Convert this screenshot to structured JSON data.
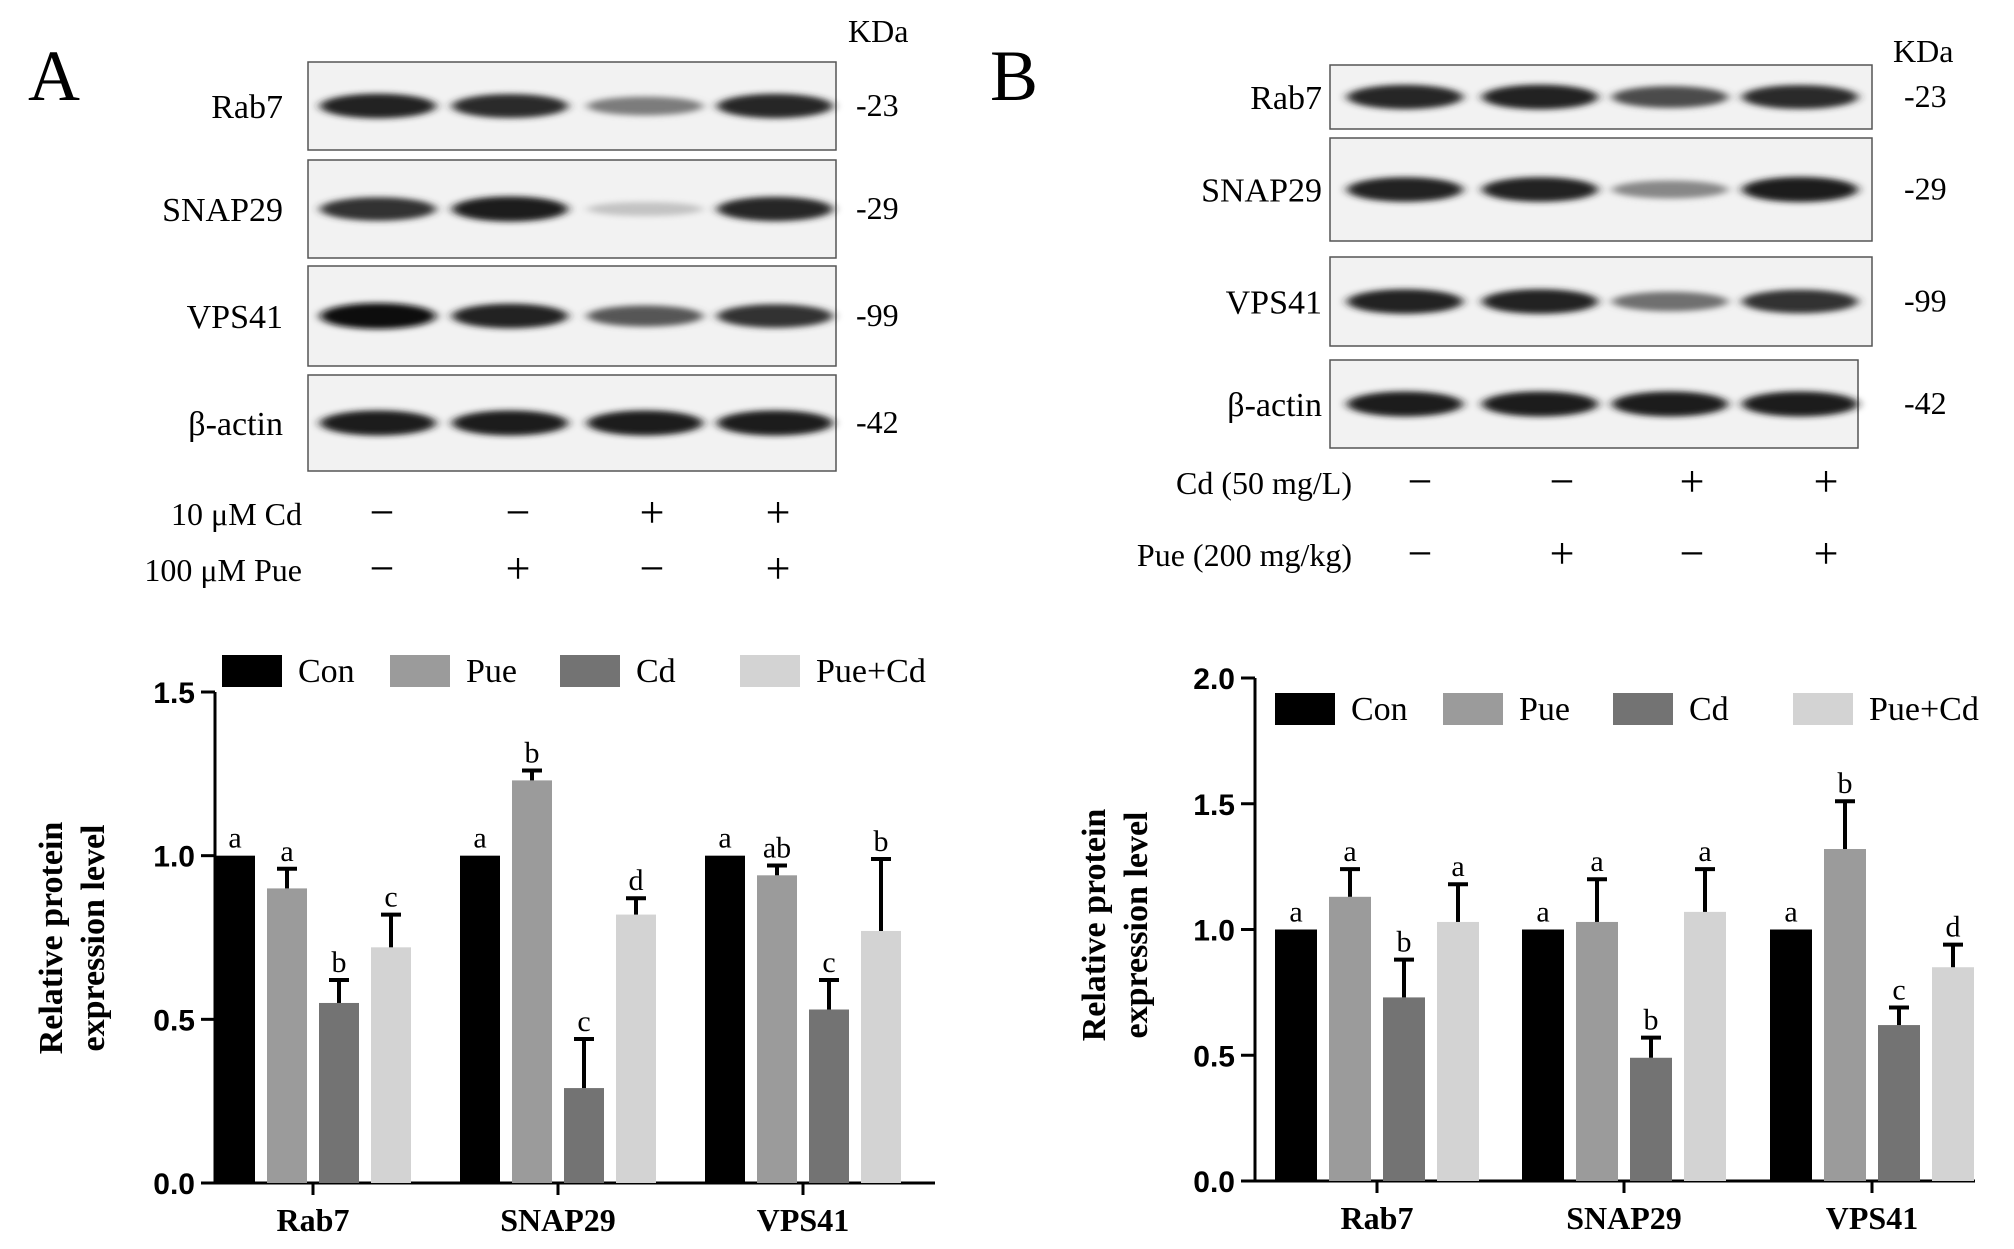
{
  "panels": [
    {
      "letter": "A",
      "kda_label": "KDa",
      "blots": [
        {
          "protein": "Rab7",
          "mw": "-23",
          "intensity": [
            0.92,
            0.88,
            0.55,
            0.9
          ]
        },
        {
          "protein": "SNAP29",
          "mw": "-29",
          "intensity": [
            0.85,
            0.95,
            0.25,
            0.9
          ]
        },
        {
          "protein": "VPS41",
          "mw": "-99",
          "intensity": [
            1.0,
            0.92,
            0.7,
            0.85
          ]
        },
        {
          "protein": "β-actin",
          "mw": "-42",
          "intensity": [
            0.95,
            0.95,
            0.95,
            0.95
          ]
        }
      ],
      "treatments": [
        {
          "label": "10 μM Cd",
          "signs": [
            "−",
            "−",
            "+",
            "+"
          ]
        },
        {
          "label": "100 μM Pue",
          "signs": [
            "−",
            "+",
            "−",
            "+"
          ]
        }
      ]
    },
    {
      "letter": "B",
      "kda_label": "KDa",
      "blots": [
        {
          "protein": "Rab7",
          "mw": "-23",
          "intensity": [
            0.9,
            0.92,
            0.75,
            0.88
          ]
        },
        {
          "protein": "SNAP29",
          "mw": "-29",
          "intensity": [
            0.92,
            0.92,
            0.5,
            0.95
          ]
        },
        {
          "protein": "VPS41",
          "mw": "-99",
          "intensity": [
            0.92,
            0.92,
            0.6,
            0.85
          ]
        },
        {
          "protein": "β-actin",
          "mw": "-42",
          "intensity": [
            0.95,
            0.95,
            0.95,
            0.95
          ]
        }
      ],
      "treatments": [
        {
          "label": "Cd (50 mg/L)",
          "signs": [
            "−",
            "−",
            "+",
            "+"
          ]
        },
        {
          "label": "Pue (200 mg/kg)",
          "signs": [
            "−",
            "+",
            "−",
            "+"
          ]
        }
      ]
    }
  ],
  "chart_data": [
    {
      "type": "bar",
      "panel": "A",
      "categories": [
        "Rab7",
        "SNAP29",
        "VPS41"
      ],
      "ylabel": "Relative protein expression level",
      "ylim": [
        0,
        1.5
      ],
      "yticks": [
        "0.0",
        "0.5",
        "1.0",
        "1.5"
      ],
      "legend": "top",
      "series": [
        {
          "name": "Con",
          "color": "#000000",
          "values": [
            1.0,
            1.0,
            1.0
          ],
          "errors": [
            0,
            0,
            0
          ],
          "letters": [
            "a",
            "a",
            "a"
          ]
        },
        {
          "name": "Pue",
          "color": "#9b9b9b",
          "values": [
            0.9,
            1.23,
            0.94
          ],
          "errors": [
            0.06,
            0.03,
            0.03
          ],
          "letters": [
            "a",
            "b",
            "ab"
          ]
        },
        {
          "name": "Cd",
          "color": "#737373",
          "values": [
            0.55,
            0.29,
            0.53
          ],
          "errors": [
            0.07,
            0.15,
            0.09
          ],
          "letters": [
            "b",
            "c",
            "c"
          ]
        },
        {
          "name": "Pue+Cd",
          "color": "#d3d3d3",
          "values": [
            0.72,
            0.82,
            0.77
          ],
          "errors": [
            0.1,
            0.05,
            0.22
          ],
          "letters": [
            "c",
            "d",
            "b"
          ]
        }
      ]
    },
    {
      "type": "bar",
      "panel": "B",
      "categories": [
        "Rab7",
        "SNAP29",
        "VPS41"
      ],
      "ylabel": "Relative protein expression level",
      "ylim": [
        0,
        2.0
      ],
      "yticks": [
        "0.0",
        "0.5",
        "1.0",
        "1.5",
        "2.0"
      ],
      "legend": "top",
      "series": [
        {
          "name": "Con",
          "color": "#000000",
          "values": [
            1.0,
            1.0,
            1.0
          ],
          "errors": [
            0,
            0,
            0
          ],
          "letters": [
            "a",
            "a",
            "a"
          ]
        },
        {
          "name": "Pue",
          "color": "#9b9b9b",
          "values": [
            1.13,
            1.03,
            1.32
          ],
          "errors": [
            0.11,
            0.17,
            0.19
          ],
          "letters": [
            "a",
            "a",
            "b"
          ]
        },
        {
          "name": "Cd",
          "color": "#737373",
          "values": [
            0.73,
            0.49,
            0.62
          ],
          "errors": [
            0.15,
            0.08,
            0.07
          ],
          "letters": [
            "b",
            "b",
            "c"
          ]
        },
        {
          "name": "Pue+Cd",
          "color": "#d3d3d3",
          "values": [
            1.03,
            1.07,
            0.85
          ],
          "errors": [
            0.15,
            0.17,
            0.09
          ],
          "letters": [
            "a",
            "a",
            "d"
          ]
        }
      ]
    }
  ]
}
